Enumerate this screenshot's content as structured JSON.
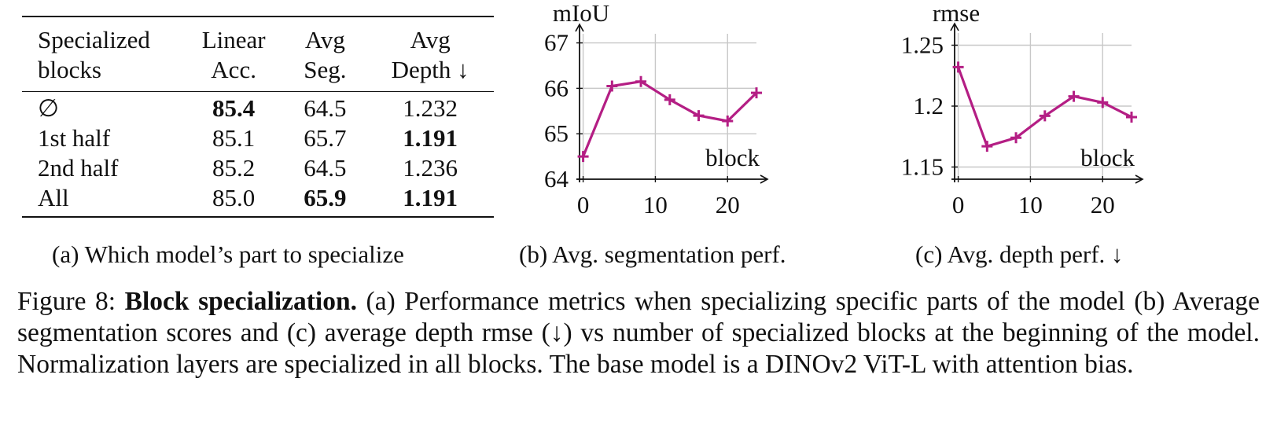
{
  "table": {
    "headers": [
      [
        "Specialized",
        "blocks"
      ],
      [
        "Linear",
        "Acc."
      ],
      [
        "Avg",
        "Seg."
      ],
      [
        "Avg",
        "Depth ↓"
      ]
    ],
    "rows": [
      {
        "name": "∅",
        "linear_acc": "85.4",
        "avg_seg": "64.5",
        "avg_depth": "1.232"
      },
      {
        "name": "1st half",
        "linear_acc": "85.1",
        "avg_seg": "65.7",
        "avg_depth": "1.191"
      },
      {
        "name": "2nd half",
        "linear_acc": "85.2",
        "avg_seg": "64.5",
        "avg_depth": "1.236"
      },
      {
        "name": "All",
        "linear_acc": "85.0",
        "avg_seg": "65.9",
        "avg_depth": "1.191"
      }
    ]
  },
  "subcaptions": {
    "a": "(a) Which model’s part to specialize",
    "b": "(b) Avg. segmentation perf.",
    "c": "(c) Avg. depth perf. ↓"
  },
  "caption": {
    "label": "Figure 8:",
    "bold": "Block specialization.",
    "text": "(a) Performance metrics when specializing specific parts of the model (b) Average segmentation scores and (c) average depth rmse (↓) vs number of specialized blocks at the beginning of the model. Normalization layers are specialized in all blocks. The base model is a DINOv2 ViT-L with attention bias."
  },
  "chart_data": [
    {
      "type": "line",
      "title": "",
      "xlabel": "block",
      "ylabel": "mIoU",
      "x": [
        0,
        4,
        8,
        12,
        16,
        20,
        24
      ],
      "series": [
        {
          "name": "mIoU",
          "values": [
            64.5,
            66.05,
            66.15,
            65.75,
            65.4,
            65.28,
            65.9
          ]
        }
      ],
      "xticks": [
        "0",
        "10",
        "20"
      ],
      "xtick_values": [
        0,
        10,
        20
      ],
      "yticks": [
        "64",
        "65",
        "66",
        "67"
      ],
      "ytick_values": [
        64,
        65,
        66,
        67
      ],
      "xlim": [
        -0.5,
        24
      ],
      "ylim": [
        64,
        67.2
      ],
      "grid": true,
      "color": "#b41e84"
    },
    {
      "type": "line",
      "title": "",
      "xlabel": "block",
      "ylabel": "rmse",
      "x": [
        0,
        4,
        8,
        12,
        16,
        20,
        24
      ],
      "series": [
        {
          "name": "rmse",
          "values": [
            1.232,
            1.167,
            1.174,
            1.192,
            1.208,
            1.203,
            1.191
          ]
        }
      ],
      "xticks": [
        "0",
        "10",
        "20"
      ],
      "xtick_values": [
        0,
        10,
        20
      ],
      "yticks": [
        "1.15",
        "1.2",
        "1.25"
      ],
      "ytick_values": [
        1.15,
        1.2,
        1.25
      ],
      "xlim": [
        -0.5,
        24
      ],
      "ylim": [
        1.14,
        1.26
      ],
      "grid": true,
      "color": "#b41e84"
    }
  ]
}
